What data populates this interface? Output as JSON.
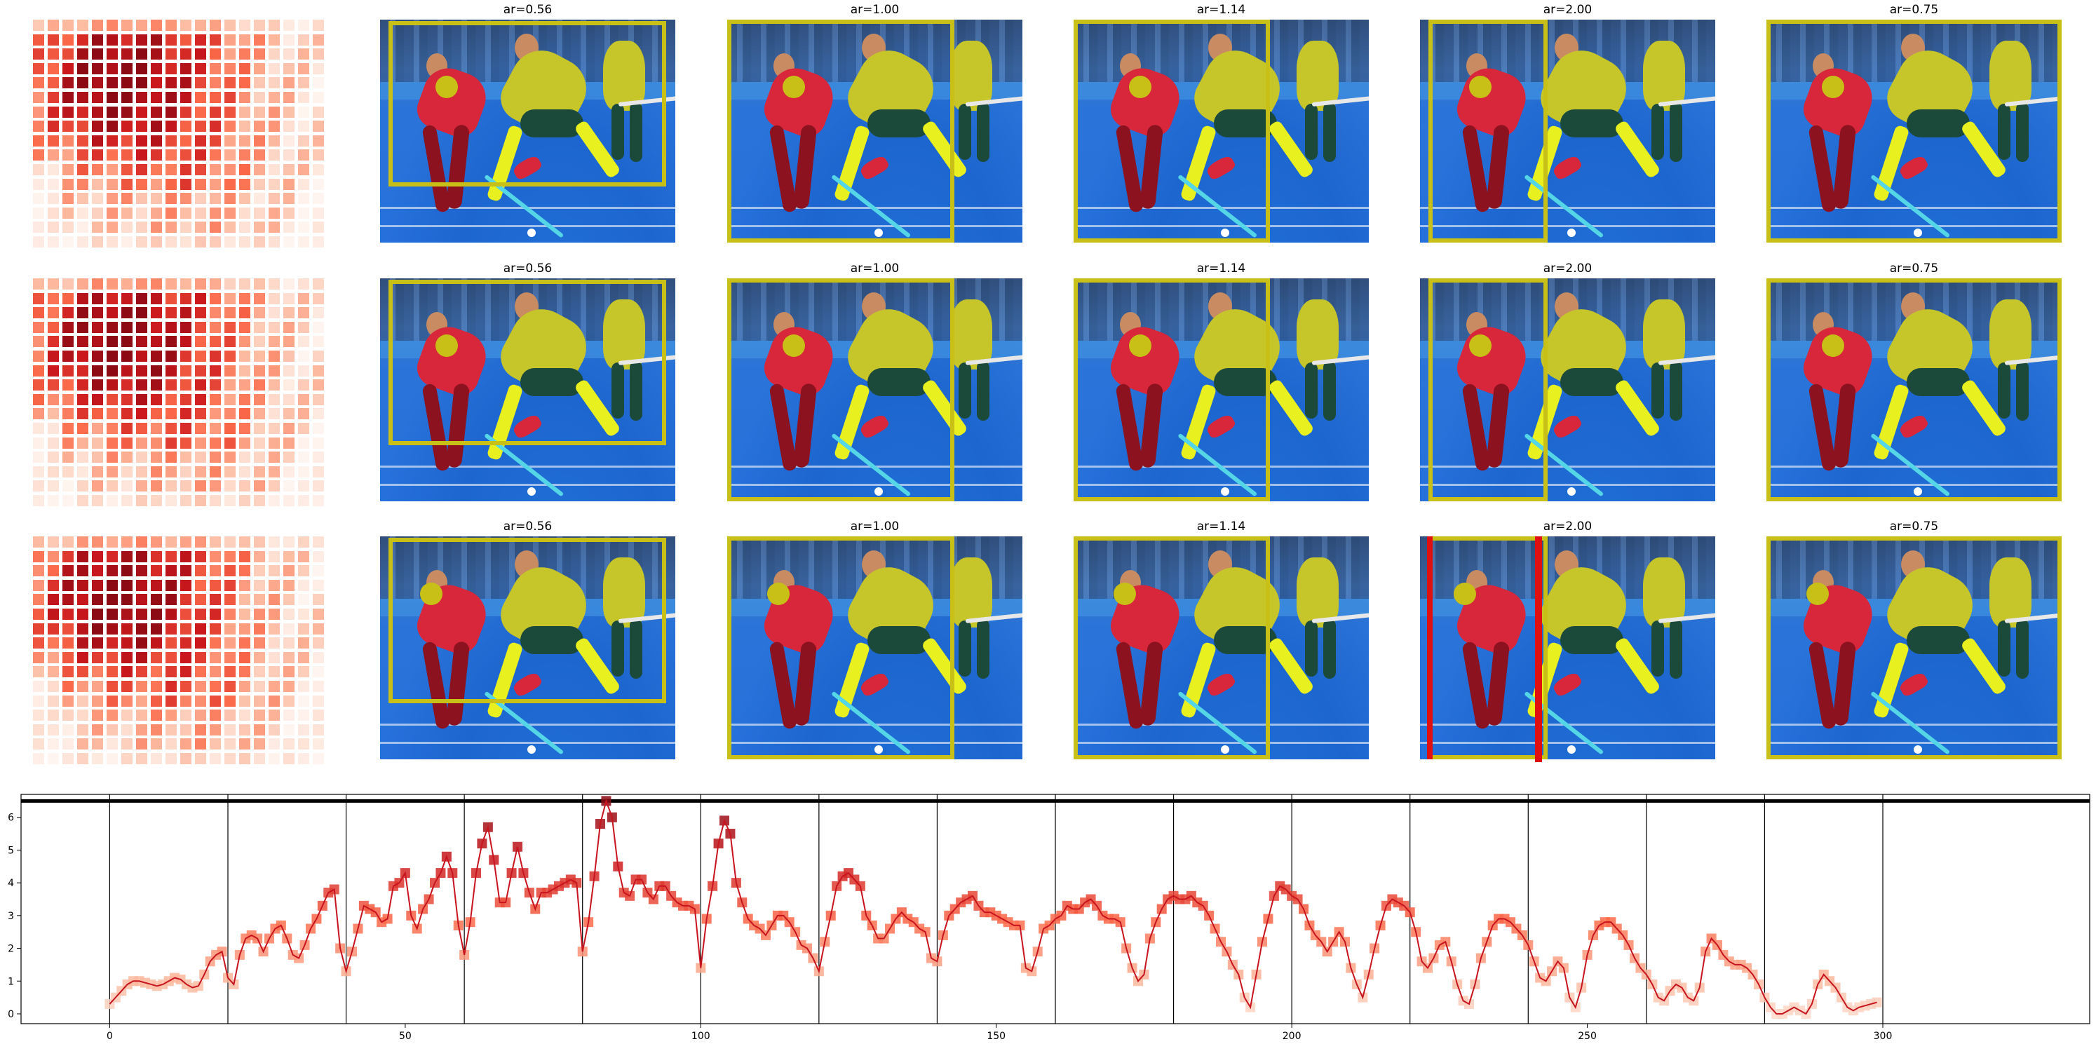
{
  "panel_titles": [
    "ar=0.56",
    "ar=1.00",
    "ar=1.14",
    "ar=2.00",
    "ar=0.75"
  ],
  "colors": {
    "box": "#c8c016",
    "highlight": "#e01010",
    "line": "#c8141e",
    "heat_low": "#fff5f0",
    "heat_high": "#a50f15"
  },
  "chart_data": {
    "type": "line",
    "x_ticks": [
      0,
      50,
      100,
      150,
      200,
      250,
      300
    ],
    "y_ticks": [
      0,
      1,
      2,
      3,
      4,
      5,
      6
    ],
    "xlim": [
      -15,
      335
    ],
    "ylim": [
      -0.3,
      6.7
    ],
    "vertical_lines_at": [
      0,
      20,
      40,
      60,
      80,
      100,
      120,
      140,
      160,
      180,
      200,
      220,
      240,
      260,
      280,
      300
    ],
    "horizontal_line_at": 6.5,
    "grid": false,
    "legend": "none",
    "marker": "square",
    "series": [
      {
        "x_start": 0,
        "values": [
          0.3,
          0.5,
          0.7,
          0.9,
          1.0,
          1.0,
          0.95,
          0.9,
          0.85,
          0.9,
          1.0,
          1.1,
          1.05,
          0.9,
          0.8,
          0.85,
          1.2,
          1.6,
          1.8,
          1.9,
          1.1,
          0.9,
          1.8,
          2.3,
          2.4,
          2.3,
          1.9,
          2.3,
          2.6,
          2.7,
          2.3,
          1.8,
          1.7,
          2.1,
          2.6,
          2.9,
          3.3,
          3.7,
          3.8,
          2.0,
          1.3,
          1.9,
          2.6,
          3.3,
          3.2,
          3.1,
          2.8,
          2.9,
          3.9,
          4.0,
          4.3,
          3.0,
          2.6,
          3.2,
          3.5,
          4.0,
          4.3,
          4.8,
          4.3,
          2.7,
          1.8,
          2.8,
          4.3,
          5.2,
          5.7,
          4.7,
          3.4,
          3.4,
          4.3,
          5.1,
          4.3,
          3.7,
          3.2,
          3.7,
          3.7,
          3.8,
          3.9,
          4.0,
          4.1,
          4.0,
          1.9,
          2.8,
          4.2,
          5.8,
          6.5,
          6.0,
          4.5,
          3.7,
          3.6,
          4.1,
          4.1,
          3.7,
          3.5,
          3.9,
          3.9,
          3.6,
          3.4,
          3.3,
          3.3,
          3.2,
          1.4,
          2.9,
          3.9,
          5.2,
          5.9,
          5.5,
          4.0,
          3.4,
          2.9,
          2.7,
          2.6,
          2.4,
          2.7,
          3.0,
          3.0,
          2.8,
          2.5,
          2.1,
          2.0,
          1.7,
          1.3,
          2.2,
          3.0,
          3.9,
          4.2,
          4.3,
          4.1,
          3.9,
          3.0,
          2.7,
          2.3,
          2.3,
          2.6,
          2.9,
          3.1,
          2.9,
          2.8,
          2.6,
          2.5,
          1.7,
          1.6,
          2.4,
          3.0,
          3.2,
          3.4,
          3.5,
          3.6,
          3.3,
          3.1,
          3.1,
          3.0,
          2.9,
          2.8,
          2.7,
          2.7,
          1.4,
          1.3,
          1.9,
          2.6,
          2.7,
          2.9,
          3.0,
          3.3,
          3.2,
          3.2,
          3.4,
          3.5,
          3.3,
          3.0,
          2.9,
          2.9,
          2.8,
          2.0,
          1.4,
          1.0,
          1.2,
          2.3,
          2.8,
          3.2,
          3.5,
          3.6,
          3.5,
          3.5,
          3.6,
          3.4,
          3.3,
          3.0,
          2.6,
          2.2,
          1.9,
          1.5,
          1.2,
          0.5,
          0.2,
          1.2,
          2.2,
          2.9,
          3.6,
          3.9,
          3.8,
          3.6,
          3.5,
          3.2,
          2.7,
          2.4,
          2.2,
          1.9,
          2.2,
          2.5,
          2.2,
          1.4,
          0.9,
          0.5,
          1.2,
          2.0,
          2.7,
          3.3,
          3.5,
          3.4,
          3.3,
          3.1,
          2.5,
          1.6,
          1.4,
          1.7,
          2.1,
          2.2,
          1.6,
          0.9,
          0.4,
          0.3,
          0.9,
          1.7,
          2.2,
          2.7,
          2.9,
          2.9,
          2.8,
          2.6,
          2.4,
          2.1,
          1.6,
          1.1,
          1.0,
          1.3,
          1.6,
          1.4,
          0.5,
          0.2,
          0.8,
          1.8,
          2.4,
          2.7,
          2.8,
          2.8,
          2.6,
          2.4,
          2.1,
          1.7,
          1.4,
          1.2,
          0.9,
          0.5,
          0.4,
          0.7,
          0.9,
          0.8,
          0.5,
          0.4,
          0.8,
          1.9,
          2.3,
          2.1,
          1.8,
          1.6,
          1.5,
          1.5,
          1.4,
          1.2,
          0.9,
          0.5,
          0.2,
          0.0,
          0.0,
          0.1,
          0.2,
          0.1,
          0.0,
          0.3,
          0.9,
          1.2,
          1.0,
          0.8,
          0.5,
          0.2,
          0.1,
          0.2,
          0.25,
          0.3,
          0.35
        ]
      }
    ]
  }
}
